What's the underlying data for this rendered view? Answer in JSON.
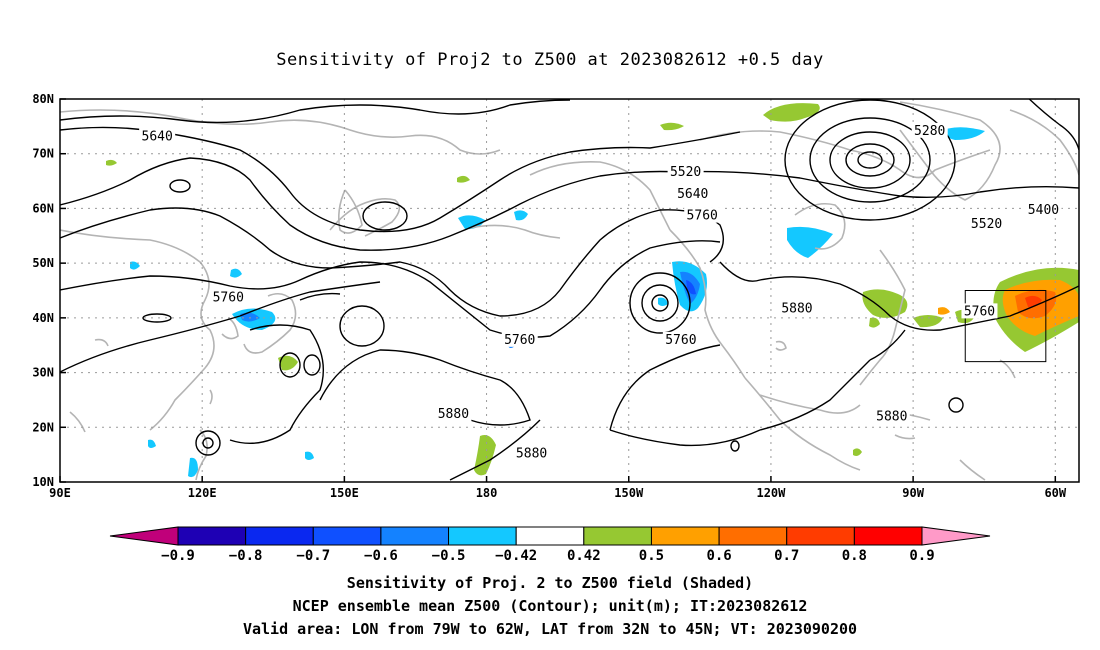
{
  "title": "Sensitivity of Proj2 to Z500 at 2023082612 +0.5 day",
  "map": {
    "lon_range": [
      90,
      305
    ],
    "lat_range": [
      10,
      80
    ],
    "lat_ticks": [
      {
        "lat": 80,
        "label": "80N"
      },
      {
        "lat": 70,
        "label": "70N"
      },
      {
        "lat": 60,
        "label": "60N"
      },
      {
        "lat": 50,
        "label": "50N"
      },
      {
        "lat": 40,
        "label": "40N"
      },
      {
        "lat": 30,
        "label": "30N"
      },
      {
        "lat": 20,
        "label": "20N"
      },
      {
        "lat": 10,
        "label": "10N"
      }
    ],
    "lon_ticks": [
      {
        "lon": 90,
        "label": "90E"
      },
      {
        "lon": 120,
        "label": "120E"
      },
      {
        "lon": 150,
        "label": "150E"
      },
      {
        "lon": 180,
        "label": "180"
      },
      {
        "lon": 210,
        "label": "150W"
      },
      {
        "lon": 240,
        "label": "120W"
      },
      {
        "lon": 270,
        "label": "90W"
      },
      {
        "lon": 300,
        "label": "60W"
      }
    ],
    "valid_box": {
      "lon": [
        281,
        298
      ],
      "lat": [
        32,
        45
      ]
    }
  },
  "contour_labels": [
    {
      "text": "5640",
      "lon": 110.5,
      "lat": 73
    },
    {
      "text": "5520",
      "lon": 222,
      "lat": 66.5
    },
    {
      "text": "5640",
      "lon": 223.5,
      "lat": 62.5
    },
    {
      "text": "5760",
      "lon": 225.5,
      "lat": 58.5
    },
    {
      "text": "5280",
      "lon": 273.5,
      "lat": 74
    },
    {
      "text": "5400",
      "lon": 297.5,
      "lat": 59.5
    },
    {
      "text": "5520",
      "lon": 285.5,
      "lat": 57
    },
    {
      "text": "5760",
      "lon": 125.5,
      "lat": 43.5
    },
    {
      "text": "5760",
      "lon": 187,
      "lat": 35.8
    },
    {
      "text": "5760",
      "lon": 221,
      "lat": 35.8
    },
    {
      "text": "5880",
      "lon": 245.5,
      "lat": 41.5
    },
    {
      "text": "5760",
      "lon": 284,
      "lat": 41
    },
    {
      "text": "5880",
      "lon": 173,
      "lat": 22.2
    },
    {
      "text": "5880",
      "lon": 265.5,
      "lat": 21.8
    },
    {
      "text": "5880",
      "lon": 189.5,
      "lat": 15
    }
  ],
  "colorbar": {
    "colors": [
      "#c0007a",
      "#1e00b4",
      "#0a28f0",
      "#0f50ff",
      "#1482ff",
      "#14c8ff",
      "#ffffff",
      "#96c832",
      "#ffa000",
      "#ff6e00",
      "#ff3c00",
      "#ff0000",
      "#ff9ac8"
    ],
    "labels": [
      "-0.9",
      "-0.8",
      "-0.7",
      "-0.6",
      "-0.5",
      "-0.42",
      "0.42",
      "0.5",
      "0.6",
      "0.7",
      "0.8",
      "0.9"
    ]
  },
  "captions": [
    "Sensitivity of Proj. 2 to Z500 field (Shaded)",
    "NCEP ensemble mean Z500 (Contour); unit(m); IT:2023082612",
    "Valid area: LON from 79W to 62W, LAT from 32N to 45N; VT: 2023090200"
  ]
}
